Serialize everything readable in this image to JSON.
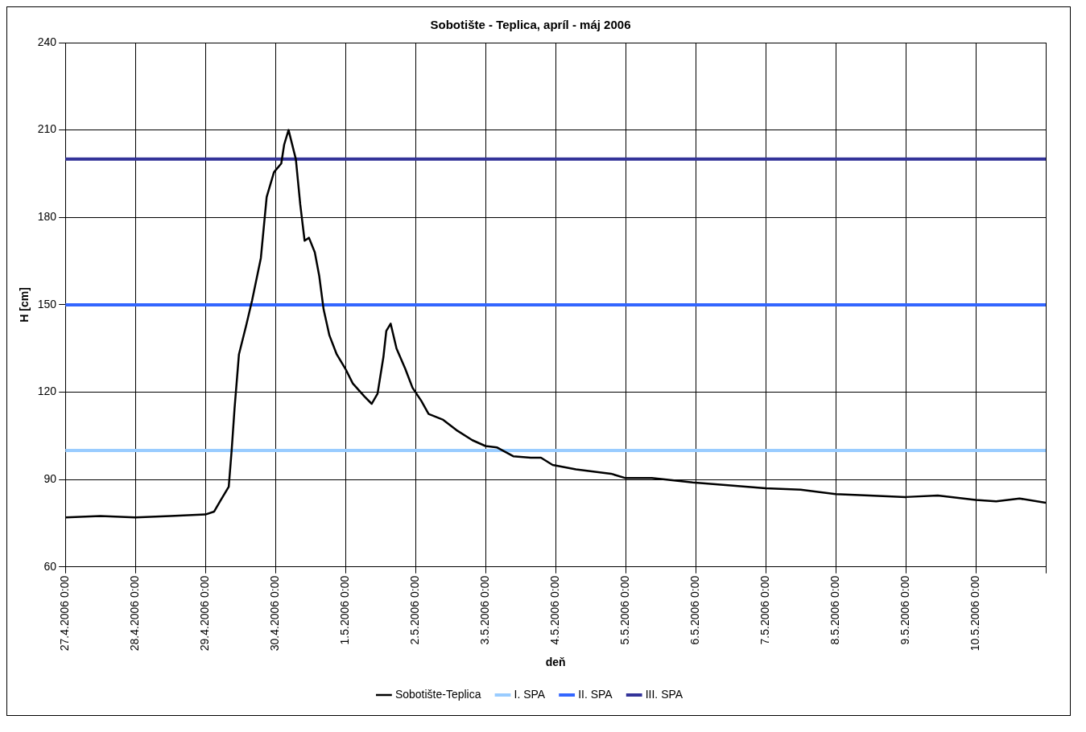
{
  "chart_data": {
    "type": "line",
    "title": "Sobotište - Teplica, apríl - máj 2006",
    "xlabel": "deň",
    "ylabel": "H [cm]",
    "xlim": [
      "2006-04-27T00:00",
      "2006-05-11T00:00"
    ],
    "xticks": [
      {
        "value": "2006-04-27T00:00",
        "label": "27.4.2006 0:00"
      },
      {
        "value": "2006-04-28T00:00",
        "label": "28.4.2006 0:00"
      },
      {
        "value": "2006-04-29T00:00",
        "label": "29.4.2006 0:00"
      },
      {
        "value": "2006-04-30T00:00",
        "label": "30.4.2006 0:00"
      },
      {
        "value": "2006-05-01T00:00",
        "label": "1.5.2006 0:00"
      },
      {
        "value": "2006-05-02T00:00",
        "label": "2.5.2006 0:00"
      },
      {
        "value": "2006-05-03T00:00",
        "label": "3.5.2006 0:00"
      },
      {
        "value": "2006-05-04T00:00",
        "label": "4.5.2006 0:00"
      },
      {
        "value": "2006-05-05T00:00",
        "label": "5.5.2006 0:00"
      },
      {
        "value": "2006-05-06T00:00",
        "label": "6.5.2006 0:00"
      },
      {
        "value": "2006-05-07T00:00",
        "label": "7.5.2006 0:00"
      },
      {
        "value": "2006-05-08T00:00",
        "label": "8.5.2006 0:00"
      },
      {
        "value": "2006-05-09T00:00",
        "label": "9.5.2006 0:00"
      },
      {
        "value": "2006-05-10T00:00",
        "label": "10.5.2006 0:00"
      },
      {
        "value": "2006-05-11T00:00",
        "label": null
      }
    ],
    "ylim": [
      60,
      240
    ],
    "yticks": [
      60,
      90,
      120,
      150,
      180,
      210,
      240
    ],
    "grid": true,
    "legend": "bottom",
    "marker": "none",
    "series": [
      {
        "name": "Sobotište-Teplica",
        "color": "#000000",
        "x": [
          "2006-04-27T00:00",
          "2006-04-27T12:00",
          "2006-04-28T00:00",
          "2006-04-28T12:00",
          "2006-04-29T00:00",
          "2006-04-29T03:00",
          "2006-04-29T05:00",
          "2006-04-29T08:00",
          "2006-04-29T09:00",
          "2006-04-29T10:00",
          "2006-04-29T11:30",
          "2006-04-29T14:00",
          "2006-04-29T16:00",
          "2006-04-29T19:00",
          "2006-04-29T21:00",
          "2006-04-29T23:30",
          "2006-04-30T02:00",
          "2006-04-30T03:00",
          "2006-04-30T04:30",
          "2006-04-30T07:00",
          "2006-04-30T08:30",
          "2006-04-30T10:00",
          "2006-04-30T11:30",
          "2006-04-30T13:30",
          "2006-04-30T15:00",
          "2006-04-30T16:30",
          "2006-04-30T18:30",
          "2006-04-30T21:00",
          "2006-05-01T00:00",
          "2006-05-01T02:30",
          "2006-05-01T06:30",
          "2006-05-01T09:00",
          "2006-05-01T11:00",
          "2006-05-01T13:00",
          "2006-05-01T14:00",
          "2006-05-01T15:30",
          "2006-05-01T17:30",
          "2006-05-01T20:30",
          "2006-05-01T23:00",
          "2006-05-02T02:00",
          "2006-05-02T04:30",
          "2006-05-02T09:30",
          "2006-05-02T14:00",
          "2006-05-02T19:30",
          "2006-05-03T00:00",
          "2006-05-03T04:00",
          "2006-05-03T09:30",
          "2006-05-03T15:30",
          "2006-05-03T19:00",
          "2006-05-03T23:00",
          "2006-05-04T07:00",
          "2006-05-04T19:00",
          "2006-05-05T00:00",
          "2006-05-05T09:00",
          "2006-05-05T23:00",
          "2006-05-06T12:00",
          "2006-05-07T00:00",
          "2006-05-07T12:00",
          "2006-05-08T00:00",
          "2006-05-08T11:30",
          "2006-05-09T00:00",
          "2006-05-09T11:00",
          "2006-05-10T00:00",
          "2006-05-10T07:00",
          "2006-05-10T15:00",
          "2006-05-11T00:00"
        ],
        "values": [
          77,
          77.5,
          77,
          77.5,
          78,
          79,
          82.5,
          87.5,
          100,
          114.5,
          133,
          143,
          151.5,
          166,
          187,
          195.5,
          198.5,
          205,
          210,
          200,
          184.5,
          172,
          173,
          168,
          160,
          148.5,
          139.5,
          133,
          128,
          123,
          118.5,
          116,
          119.5,
          132,
          141,
          143.5,
          135,
          128,
          121.5,
          117,
          112.5,
          110.5,
          107,
          103.5,
          101.5,
          101,
          98,
          97.5,
          97.5,
          95,
          93.5,
          92,
          90.5,
          90.5,
          89,
          88,
          87,
          86.5,
          85,
          84.5,
          84,
          84.5,
          83,
          82.5,
          83.5,
          82
        ]
      },
      {
        "name": "I. SPA",
        "color": "#99ccff",
        "x": [
          "2006-04-27T00:00",
          "2006-05-11T00:00"
        ],
        "values": [
          100,
          100
        ]
      },
      {
        "name": "II. SPA",
        "color": "#3366ff",
        "x": [
          "2006-04-27T00:00",
          "2006-05-11T00:00"
        ],
        "values": [
          150,
          150
        ]
      },
      {
        "name": "III. SPA",
        "color": "#333399",
        "x": [
          "2006-04-27T00:00",
          "2006-05-11T00:00"
        ],
        "values": [
          200,
          200
        ]
      }
    ]
  }
}
